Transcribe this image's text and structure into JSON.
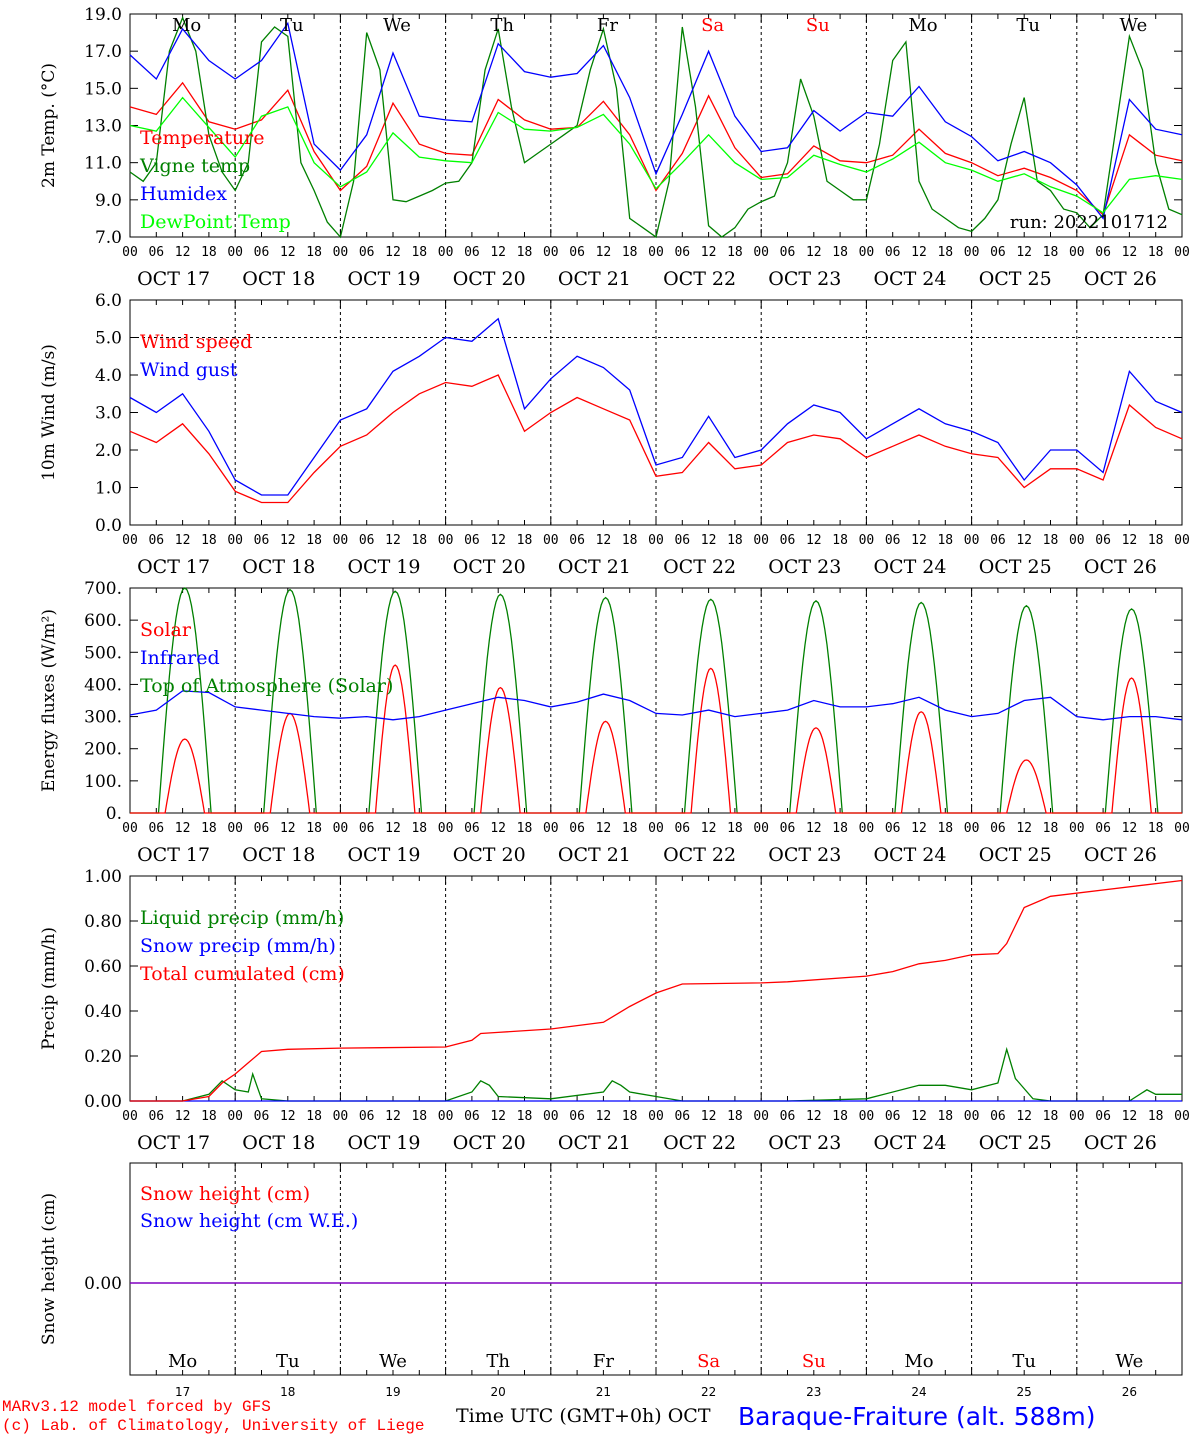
{
  "run_label": "run: 2022101712",
  "station_title": "Baraque-Fraiture (alt. 588m)",
  "footer": {
    "credit_1": "MARv3.12 model forced by GFS",
    "credit_2": "(c) Lab. of Climatology, University of Liege",
    "time_axis": "Time UTC (GMT+0h) OCT"
  },
  "colors": {
    "red": "#ff0000",
    "blue": "#0000ff",
    "darkgreen": "#008000",
    "lightgreen": "#00ff00",
    "purple": "#8000c0"
  },
  "days": [
    "Mo",
    "Tu",
    "We",
    "Th",
    "Fr",
    "Sa",
    "Su",
    "Mo",
    "Tu",
    "We"
  ],
  "weekend": [
    false,
    false,
    false,
    false,
    false,
    true,
    true,
    false,
    false,
    false
  ],
  "dates": [
    "OCT 17",
    "OCT 18",
    "OCT 19",
    "OCT 20",
    "OCT 21",
    "OCT 22",
    "OCT 23",
    "OCT 24",
    "OCT 25",
    "OCT 26"
  ],
  "day_numbers": [
    "17",
    "18",
    "19",
    "20",
    "21",
    "22",
    "23",
    "24",
    "25",
    "26"
  ],
  "hour_ticks": [
    "00",
    "06",
    "12",
    "18"
  ],
  "chart_data": [
    {
      "type": "line",
      "ylabel": "2m Temp. (°C)",
      "ylim": [
        7,
        19
      ],
      "yticks": [
        "7.0",
        "9.0",
        "11.0",
        "13.0",
        "15.0",
        "17.0",
        "19.0"
      ],
      "x_unit": "hours since 2022-10-17 00 UTC",
      "series": [
        {
          "name": "Temperature",
          "color": "red",
          "x": [
            0,
            6,
            12,
            18,
            24,
            30,
            36,
            42,
            48,
            54,
            60,
            66,
            72,
            78,
            84,
            90,
            96,
            102,
            108,
            114,
            120,
            126,
            132,
            138,
            144,
            150,
            156,
            162,
            168,
            174,
            180,
            186,
            192,
            198,
            204,
            210,
            216,
            222,
            228,
            234,
            240
          ],
          "values": [
            14.0,
            13.6,
            15.3,
            13.2,
            12.8,
            13.3,
            14.9,
            11.6,
            9.5,
            10.8,
            14.2,
            12.0,
            11.5,
            11.4,
            14.4,
            13.3,
            12.8,
            12.9,
            14.3,
            12.5,
            9.5,
            11.5,
            14.6,
            11.8,
            10.2,
            10.4,
            11.9,
            11.1,
            11.0,
            11.4,
            12.8,
            11.5,
            11.0,
            10.3,
            10.7,
            10.2,
            9.5,
            8.2,
            12.5,
            11.4,
            11.1
          ]
        },
        {
          "name": "Vigne temp",
          "color": "darkgreen",
          "x": [
            0,
            3,
            6,
            9,
            12,
            15,
            18,
            21,
            24,
            27,
            30,
            33,
            36,
            39,
            42,
            45,
            48,
            51,
            54,
            57,
            60,
            63,
            66,
            69,
            72,
            75,
            78,
            81,
            84,
            87,
            90,
            93,
            96,
            99,
            102,
            105,
            108,
            111,
            114,
            117,
            120,
            123,
            126,
            129,
            132,
            135,
            138,
            141,
            144,
            147,
            150,
            153,
            156,
            159,
            162,
            165,
            168,
            171,
            174,
            177,
            180,
            183,
            186,
            189,
            192,
            195,
            198,
            201,
            204,
            207,
            210,
            213,
            216,
            219,
            222,
            225,
            228,
            231,
            234,
            237,
            240
          ],
          "values": [
            10.5,
            10,
            11,
            17,
            18.8,
            17,
            12.5,
            10.5,
            9.5,
            11,
            17.5,
            18.3,
            17.8,
            11,
            9.5,
            7.8,
            7,
            10,
            18,
            16,
            9,
            8.9,
            9.2,
            9.5,
            9.9,
            10,
            11,
            16,
            18.2,
            14,
            11,
            11.5,
            12,
            12.5,
            13,
            16,
            18.2,
            15,
            8,
            7.5,
            7,
            10,
            18.3,
            14,
            7.6,
            7,
            7.5,
            8.5,
            8.9,
            9.2,
            11,
            15.5,
            13.5,
            10,
            9.5,
            9,
            9,
            12,
            16.5,
            17.5,
            10,
            8.5,
            8,
            7.5,
            7.3,
            8,
            9,
            12,
            14.5,
            10,
            9.5,
            8.5,
            8.3,
            7.5,
            8.2,
            13,
            17.8,
            16,
            11,
            8.5,
            8.2
          ]
        },
        {
          "name": "Humidex",
          "color": "blue",
          "x": [
            0,
            6,
            12,
            18,
            24,
            30,
            36,
            42,
            48,
            54,
            60,
            66,
            72,
            78,
            84,
            90,
            96,
            102,
            108,
            114,
            120,
            126,
            132,
            138,
            144,
            150,
            156,
            162,
            168,
            174,
            180,
            186,
            192,
            198,
            204,
            210,
            216,
            222,
            228,
            234,
            240
          ],
          "values": [
            16.8,
            15.5,
            18.2,
            16.5,
            15.5,
            16.5,
            18.5,
            12,
            10.6,
            12.5,
            16.9,
            13.5,
            13.3,
            13.2,
            17.4,
            15.9,
            15.6,
            15.8,
            17.3,
            14.5,
            10.4,
            13.6,
            17.0,
            13.5,
            11.6,
            11.8,
            13.8,
            12.7,
            13.7,
            13.5,
            15.1,
            13.2,
            12.4,
            11.1,
            11.6,
            11.0,
            9.8,
            8.0,
            14.4,
            12.8,
            12.5
          ]
        },
        {
          "name": "DewPoint Temp",
          "color": "lightgreen",
          "x": [
            0,
            6,
            12,
            18,
            24,
            30,
            36,
            42,
            48,
            54,
            60,
            66,
            72,
            78,
            84,
            90,
            96,
            102,
            108,
            114,
            120,
            126,
            132,
            138,
            144,
            150,
            156,
            162,
            168,
            174,
            180,
            186,
            192,
            198,
            204,
            210,
            216,
            222,
            228,
            234,
            240
          ],
          "values": [
            13.0,
            12.7,
            14.5,
            12.9,
            11.3,
            13.5,
            14.0,
            11.0,
            9.7,
            10.5,
            12.6,
            11.3,
            11.1,
            11.0,
            13.7,
            12.8,
            12.7,
            12.9,
            13.6,
            12.0,
            9.6,
            11.0,
            12.5,
            11.0,
            10.1,
            10.2,
            11.4,
            10.9,
            10.5,
            11.2,
            12.1,
            11.0,
            10.6,
            10.0,
            10.4,
            9.7,
            9.2,
            8.3,
            10.1,
            10.3,
            10.1
          ]
        }
      ]
    },
    {
      "type": "line",
      "ylabel": "10m Wind (m/s)",
      "ylim": [
        0,
        6
      ],
      "yticks": [
        "0.0",
        "1.0",
        "2.0",
        "3.0",
        "4.0",
        "5.0",
        "6.0"
      ],
      "ref_line": 5.0,
      "series": [
        {
          "name": "Wind speed",
          "color": "red",
          "x": [
            0,
            6,
            12,
            18,
            24,
            30,
            36,
            42,
            48,
            54,
            60,
            66,
            72,
            78,
            84,
            90,
            96,
            102,
            108,
            114,
            120,
            126,
            132,
            138,
            144,
            150,
            156,
            162,
            168,
            174,
            180,
            186,
            192,
            198,
            204,
            210,
            216,
            222,
            228,
            234,
            240
          ],
          "values": [
            2.5,
            2.2,
            2.7,
            1.9,
            0.9,
            0.6,
            0.6,
            1.4,
            2.1,
            2.4,
            3.0,
            3.5,
            3.8,
            3.7,
            4.0,
            2.5,
            3.0,
            3.4,
            3.1,
            2.8,
            1.3,
            1.4,
            2.2,
            1.5,
            1.6,
            2.2,
            2.4,
            2.3,
            1.8,
            2.1,
            2.4,
            2.1,
            1.9,
            1.8,
            1.0,
            1.5,
            1.5,
            1.2,
            3.2,
            2.6,
            2.3
          ]
        },
        {
          "name": "Wind gust",
          "color": "blue",
          "x": [
            0,
            6,
            12,
            18,
            24,
            30,
            36,
            42,
            48,
            54,
            60,
            66,
            72,
            78,
            84,
            90,
            96,
            102,
            108,
            114,
            120,
            126,
            132,
            138,
            144,
            150,
            156,
            162,
            168,
            174,
            180,
            186,
            192,
            198,
            204,
            210,
            216,
            222,
            228,
            234,
            240
          ],
          "values": [
            3.4,
            3.0,
            3.5,
            2.5,
            1.2,
            0.8,
            0.8,
            1.8,
            2.8,
            3.1,
            4.1,
            4.5,
            5.0,
            4.9,
            5.5,
            3.1,
            3.9,
            4.5,
            4.2,
            3.6,
            1.6,
            1.8,
            2.9,
            1.8,
            2.0,
            2.7,
            3.2,
            3.0,
            2.3,
            2.7,
            3.1,
            2.7,
            2.5,
            2.2,
            1.2,
            2.0,
            2.0,
            1.4,
            4.1,
            3.3,
            3.0
          ]
        }
      ]
    },
    {
      "type": "line",
      "ylabel": "Energy fluxes (W/m²)",
      "ylim": [
        0,
        700
      ],
      "yticks": [
        "0.",
        "100.",
        "200.",
        "300.",
        "400.",
        "500.",
        "600.",
        "700."
      ],
      "series": [
        {
          "name": "Solar",
          "color": "red",
          "peaks": [
            230,
            310,
            460,
            390,
            285,
            450,
            265,
            315,
            165,
            420
          ]
        },
        {
          "name": "Infrared",
          "color": "blue",
          "x": [
            0,
            6,
            12,
            18,
            24,
            30,
            36,
            42,
            48,
            54,
            60,
            66,
            72,
            78,
            84,
            90,
            96,
            102,
            108,
            114,
            120,
            126,
            132,
            138,
            144,
            150,
            156,
            162,
            168,
            174,
            180,
            186,
            192,
            198,
            204,
            210,
            216,
            222,
            228,
            234,
            240
          ],
          "values": [
            305,
            320,
            380,
            375,
            330,
            320,
            310,
            300,
            295,
            300,
            290,
            300,
            320,
            340,
            360,
            350,
            330,
            345,
            370,
            350,
            310,
            305,
            320,
            300,
            310,
            320,
            350,
            330,
            330,
            340,
            360,
            320,
            300,
            310,
            350,
            360,
            300,
            290,
            300,
            300,
            290
          ]
        },
        {
          "name": "Top of Atmosphere (Solar)",
          "color": "darkgreen",
          "peaks": [
            700,
            695,
            690,
            680,
            670,
            665,
            660,
            655,
            645,
            635
          ]
        }
      ]
    },
    {
      "type": "line",
      "ylabel": "Precip (mm/h)",
      "ylim": [
        0,
        1
      ],
      "yticks": [
        "0.00",
        "0.20",
        "0.40",
        "0.60",
        "0.80",
        "1.00"
      ],
      "series": [
        {
          "name": "Liquid precip (mm/h)",
          "color": "darkgreen",
          "x": [
            0,
            12,
            18,
            21,
            24,
            27,
            28,
            30,
            36,
            72,
            78,
            80,
            82,
            84,
            96,
            108,
            110,
            112,
            114,
            120,
            126,
            150,
            168,
            180,
            186,
            192,
            198,
            200,
            202,
            206,
            210,
            228,
            232,
            234,
            240
          ],
          "values": [
            0,
            0,
            0.03,
            0.09,
            0.05,
            0.04,
            0.12,
            0.01,
            0,
            0,
            0.04,
            0.09,
            0.07,
            0.02,
            0.01,
            0.04,
            0.09,
            0.07,
            0.04,
            0.02,
            0,
            0,
            0.01,
            0.07,
            0.07,
            0.05,
            0.08,
            0.23,
            0.1,
            0.01,
            0,
            0,
            0.05,
            0.03,
            0.03
          ]
        },
        {
          "name": "Snow precip (mm/h)",
          "color": "blue",
          "x": [
            0,
            240
          ],
          "values": [
            0,
            0
          ]
        },
        {
          "name": "Total cumulated (cm)",
          "color": "red",
          "x": [
            0,
            12,
            18,
            21,
            24,
            27,
            30,
            36,
            48,
            72,
            78,
            80,
            84,
            96,
            108,
            114,
            120,
            126,
            144,
            150,
            168,
            174,
            180,
            186,
            192,
            198,
            200,
            204,
            210,
            240
          ],
          "values": [
            0,
            0,
            0.02,
            0.08,
            0.12,
            0.17,
            0.22,
            0.23,
            0.235,
            0.24,
            0.27,
            0.3,
            0.305,
            0.32,
            0.35,
            0.42,
            0.48,
            0.52,
            0.525,
            0.53,
            0.555,
            0.575,
            0.61,
            0.625,
            0.65,
            0.655,
            0.7,
            0.86,
            0.91,
            0.98
          ]
        }
      ]
    },
    {
      "type": "line",
      "ylabel": "Snow height (cm)",
      "yticks": [
        "0.00"
      ],
      "series": [
        {
          "name": "Snow height (cm)",
          "color": "red",
          "x": [
            0,
            240
          ],
          "values": [
            0,
            0
          ]
        },
        {
          "name": "Snow height (cm W.E.)",
          "color": "blue",
          "x": [
            0,
            240
          ],
          "values": [
            0,
            0
          ]
        }
      ]
    }
  ]
}
